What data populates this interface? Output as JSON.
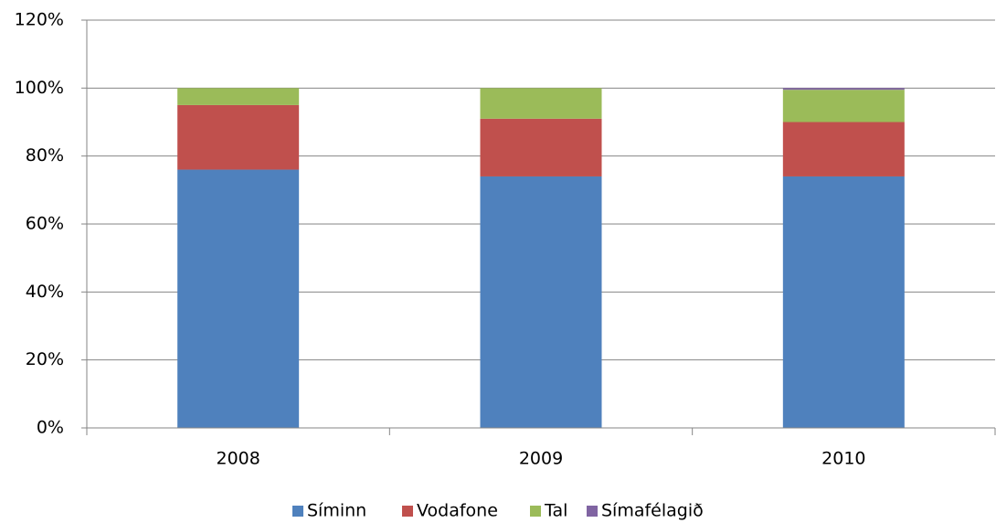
{
  "chart_data": {
    "type": "stacked_bar",
    "categories": [
      "2008",
      "2009",
      "2010"
    ],
    "series": [
      {
        "name": "Síminn",
        "color": "#4f81bd",
        "values": [
          76,
          74,
          74
        ]
      },
      {
        "name": "Vodafone",
        "color": "#c0504d",
        "values": [
          19,
          17,
          16
        ]
      },
      {
        "name": "Tal",
        "color": "#9bbb59",
        "values": [
          5,
          9,
          9.5
        ]
      },
      {
        "name": "Símafélagið",
        "color": "#8064a2",
        "values": [
          0,
          0,
          0.5
        ]
      }
    ],
    "ylim": [
      0,
      120
    ],
    "yticks": [
      {
        "value": 0,
        "label": "0%"
      },
      {
        "value": 20,
        "label": "20%"
      },
      {
        "value": 40,
        "label": "40%"
      },
      {
        "value": 60,
        "label": "60%"
      },
      {
        "value": 80,
        "label": "80%"
      },
      {
        "value": 100,
        "label": "100%"
      },
      {
        "value": 120,
        "label": "120%"
      }
    ],
    "grid": true,
    "legend": "bottom"
  }
}
